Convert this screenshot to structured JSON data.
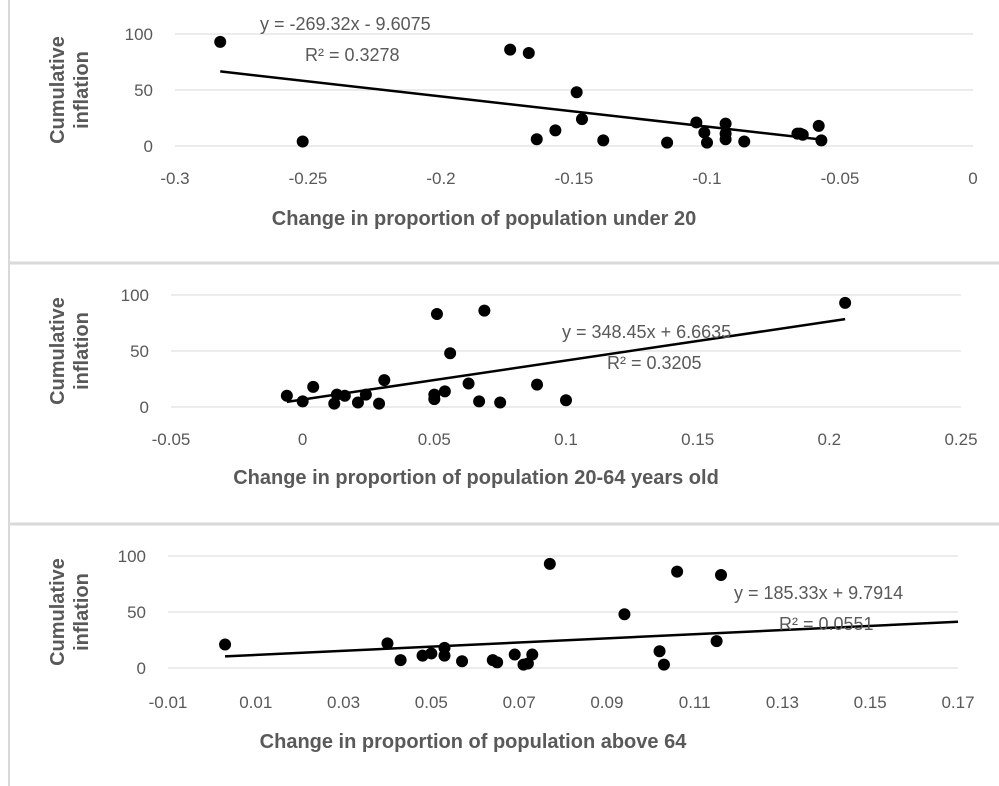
{
  "chart_data": [
    {
      "type": "scatter",
      "xlabel": "Change in proportion of population  under 20",
      "ylabel": "Cumulative inflation",
      "xlim": [
        -0.3,
        0
      ],
      "ylim": [
        0,
        100
      ],
      "x_ticks": [
        "-0.3",
        "-0.25",
        "-0.2",
        "-0.15",
        "-0.1",
        "-0.05",
        "0"
      ],
      "y_ticks": [
        "0",
        "50",
        "100"
      ],
      "grid": "horizontal",
      "equation": "y = -269.32x - 9.6075",
      "r_squared": "R² = 0.3278",
      "trendline": {
        "slope": -269.32,
        "intercept": -9.6075,
        "x_range": [
          -0.283,
          -0.058
        ]
      },
      "points": [
        [
          -0.283,
          93
        ],
        [
          -0.252,
          4
        ],
        [
          -0.174,
          86
        ],
        [
          -0.167,
          83
        ],
        [
          -0.164,
          6
        ],
        [
          -0.157,
          14
        ],
        [
          -0.149,
          48
        ],
        [
          -0.147,
          24
        ],
        [
          -0.139,
          5
        ],
        [
          -0.115,
          3
        ],
        [
          -0.104,
          21
        ],
        [
          -0.101,
          12
        ],
        [
          -0.1,
          3
        ],
        [
          -0.093,
          6
        ],
        [
          -0.093,
          11
        ],
        [
          -0.093,
          20
        ],
        [
          -0.086,
          4
        ],
        [
          -0.066,
          11
        ],
        [
          -0.065,
          11
        ],
        [
          -0.064,
          10
        ],
        [
          -0.058,
          18
        ],
        [
          -0.057,
          5
        ]
      ]
    },
    {
      "type": "scatter",
      "xlabel": "Change in proportion of population  20-64 years old",
      "ylabel": "Cumulative inflation",
      "xlim": [
        -0.05,
        0.25
      ],
      "ylim": [
        0,
        100
      ],
      "x_ticks": [
        "-0.05",
        "0",
        "0.05",
        "0.1",
        "0.15",
        "0.2",
        "0.25"
      ],
      "y_ticks": [
        "0",
        "50",
        "100"
      ],
      "grid": "horizontal",
      "equation": "y = 348.45x + 6.6635",
      "r_squared": "R² = 0.3205",
      "trendline": {
        "slope": 348.45,
        "intercept": 6.6635,
        "x_range": [
          -0.006,
          0.206
        ]
      },
      "points": [
        [
          -0.006,
          10
        ],
        [
          0.0,
          5
        ],
        [
          0.004,
          18
        ],
        [
          0.012,
          3
        ],
        [
          0.013,
          11
        ],
        [
          0.016,
          10
        ],
        [
          0.021,
          4
        ],
        [
          0.024,
          11
        ],
        [
          0.029,
          3
        ],
        [
          0.031,
          24
        ],
        [
          0.05,
          11
        ],
        [
          0.05,
          7
        ],
        [
          0.051,
          83
        ],
        [
          0.054,
          14
        ],
        [
          0.056,
          48
        ],
        [
          0.063,
          21
        ],
        [
          0.067,
          5
        ],
        [
          0.069,
          86
        ],
        [
          0.075,
          4
        ],
        [
          0.089,
          20
        ],
        [
          0.1,
          6
        ],
        [
          0.206,
          93
        ]
      ]
    },
    {
      "type": "scatter",
      "xlabel": "Change in proportion of population  above 64",
      "ylabel": "Cumulative inflation",
      "xlim": [
        -0.01,
        0.17
      ],
      "ylim": [
        0,
        100
      ],
      "x_ticks": [
        "-0.01",
        "0.01",
        "0.03",
        "0.05",
        "0.07",
        "0.09",
        "0.11",
        "0.13",
        "0.15",
        "0.17"
      ],
      "y_ticks": [
        "0",
        "50",
        "100"
      ],
      "grid": "horizontal",
      "equation": "y = 185.33x + 9.7914",
      "r_squared": "R² = 0.0551",
      "trendline": {
        "slope": 185.33,
        "intercept": 9.7914,
        "x_range": [
          0.003,
          0.17
        ]
      },
      "points": [
        [
          0.003,
          21
        ],
        [
          0.04,
          22
        ],
        [
          0.043,
          7
        ],
        [
          0.048,
          11
        ],
        [
          0.05,
          13
        ],
        [
          0.053,
          18
        ],
        [
          0.053,
          11
        ],
        [
          0.057,
          6
        ],
        [
          0.064,
          7
        ],
        [
          0.065,
          5
        ],
        [
          0.069,
          12
        ],
        [
          0.071,
          3
        ],
        [
          0.072,
          4
        ],
        [
          0.073,
          12
        ],
        [
          0.077,
          93
        ],
        [
          0.094,
          48
        ],
        [
          0.102,
          15
        ],
        [
          0.103,
          3
        ],
        [
          0.106,
          86
        ],
        [
          0.115,
          24
        ],
        [
          0.116,
          83
        ]
      ]
    }
  ],
  "colors": {
    "marker": "#000000",
    "trendline": "#000000",
    "gridline": "#d9d9d9",
    "tick_text": "#595959",
    "label_text": "#595959",
    "panel_divider": "#d9d9d9"
  }
}
